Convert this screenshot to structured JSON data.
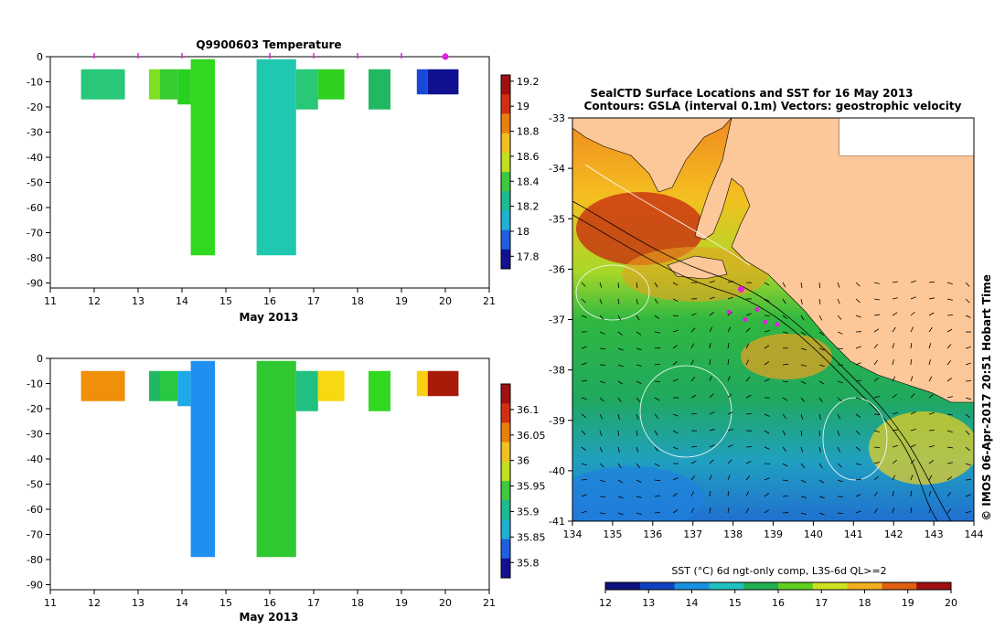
{
  "colors": {
    "land": "#fcc899",
    "ocean_deep": "#1a7a3a",
    "marker": "#e020e0",
    "contour": "#ffffff"
  },
  "panels": {
    "temp": {
      "title": "Q9900603  Temperature",
      "xlabel": "May 2013",
      "xticks": [
        "11",
        "12",
        "13",
        "14",
        "15",
        "16",
        "17",
        "18",
        "19",
        "20",
        "21"
      ],
      "yticks": [
        "0",
        "-10",
        "-20",
        "-30",
        "-40",
        "-50",
        "-60",
        "-70",
        "-80",
        "-90"
      ],
      "cbar_ticks": [
        "19.2",
        "19",
        "18.8",
        "18.6",
        "18.4",
        "18.2",
        "18",
        "17.8"
      ],
      "cbar_colors": [
        "#a01010",
        "#d03010",
        "#e88010",
        "#f0c020",
        "#c0e020",
        "#40c840",
        "#20b890",
        "#20b0d0",
        "#2060e0",
        "#101090"
      ]
    },
    "sal": {
      "title": "",
      "xlabel": "May 2013",
      "xticks": [
        "11",
        "12",
        "13",
        "14",
        "15",
        "16",
        "17",
        "18",
        "19",
        "20",
        "21"
      ],
      "yticks": [
        "0",
        "-10",
        "-20",
        "-30",
        "-40",
        "-50",
        "-60",
        "-70",
        "-80",
        "-90"
      ],
      "cbar_ticks": [
        "36.1",
        "36.05",
        "36",
        "35.95",
        "35.9",
        "35.85",
        "35.8"
      ],
      "cbar_colors": [
        "#a01010",
        "#d03010",
        "#e88010",
        "#f0c020",
        "#c0e020",
        "#40c840",
        "#20b890",
        "#20b0d0",
        "#2060e0",
        "#101090"
      ]
    }
  },
  "map": {
    "title_line1": "SealCTD Surface Locations and SST for 16 May 2013",
    "title_line2": "Contours: GSLA (interval 0.1m) Vectors: geostrophic velocity",
    "xticks": [
      "134",
      "135",
      "136",
      "137",
      "138",
      "139",
      "140",
      "141",
      "142",
      "143",
      "144"
    ],
    "yticks": [
      "-33",
      "-34",
      "-35",
      "-36",
      "-37",
      "-38",
      "-39",
      "-40",
      "-41"
    ],
    "sst_label": "SST (°C) 6d ngt-only comp, L3S-6d QL>=2",
    "sst_ticks": [
      "12",
      "13",
      "14",
      "15",
      "16",
      "17",
      "18",
      "19",
      "20"
    ],
    "sst_colors": [
      "#101080",
      "#1040c0",
      "#1890e0",
      "#20c0c0",
      "#20b050",
      "#60d020",
      "#d0e020",
      "#f0b020",
      "#e06010",
      "#a01010"
    ],
    "credit": "© IMOS 06-Apr-2017 20:51 Hobart Time"
  },
  "chart_data": [
    {
      "type": "heatmap",
      "title": "Q9900603  Temperature",
      "xlabel": "May 2013",
      "ylabel": "",
      "xlim": [
        11,
        21
      ],
      "ylim": [
        -92,
        0
      ],
      "colorbar_range": [
        17.7,
        19.25
      ],
      "profile_dates": [
        12,
        13,
        14,
        16,
        17,
        18,
        19,
        20
      ],
      "cells": [
        {
          "x0": 11.7,
          "x1": 12.7,
          "y0": -5,
          "y1": -17,
          "value": 18.35,
          "color": "#28c878"
        },
        {
          "x0": 13.25,
          "x1": 13.5,
          "y0": -5,
          "y1": -17,
          "value": 18.55,
          "color": "#7ee020"
        },
        {
          "x0": 13.5,
          "x1": 13.9,
          "y0": -5,
          "y1": -17,
          "value": 18.45,
          "color": "#38cc30"
        },
        {
          "x0": 13.9,
          "x1": 14.2,
          "y0": -5,
          "y1": -19,
          "value": 18.5,
          "color": "#28d020"
        },
        {
          "x0": 14.2,
          "x1": 14.75,
          "y0": -1,
          "y1": -79,
          "value": 18.5,
          "color": "#30d820"
        },
        {
          "x0": 15.7,
          "x1": 16.6,
          "y0": -1,
          "y1": -79,
          "value": 18.25,
          "color": "#20c8b0"
        },
        {
          "x0": 16.6,
          "x1": 17.1,
          "y0": -5,
          "y1": -21,
          "value": 18.35,
          "color": "#28c878"
        },
        {
          "x0": 17.1,
          "x1": 17.7,
          "y0": -5,
          "y1": -17,
          "value": 18.5,
          "color": "#30d020"
        },
        {
          "x0": 18.25,
          "x1": 18.75,
          "y0": -5,
          "y1": -21,
          "value": 18.4,
          "color": "#20b860"
        },
        {
          "x0": 19.35,
          "x1": 19.6,
          "y0": -5,
          "y1": -15,
          "value": 17.9,
          "color": "#1848d8"
        },
        {
          "x0": 19.6,
          "x1": 20.3,
          "y0": -5,
          "y1": -15,
          "value": 17.75,
          "color": "#101090"
        }
      ]
    },
    {
      "type": "heatmap",
      "title": "",
      "xlabel": "May 2013",
      "ylabel": "",
      "xlim": [
        11,
        21
      ],
      "ylim": [
        -92,
        0
      ],
      "colorbar_range": [
        35.77,
        36.15
      ],
      "cells": [
        {
          "x0": 11.7,
          "x1": 12.7,
          "y0": -5,
          "y1": -17,
          "value": 36.03,
          "color": "#f0900a"
        },
        {
          "x0": 13.25,
          "x1": 13.5,
          "y0": -5,
          "y1": -17,
          "value": 35.93,
          "color": "#20b860"
        },
        {
          "x0": 13.5,
          "x1": 13.9,
          "y0": -5,
          "y1": -17,
          "value": 35.95,
          "color": "#28c840"
        },
        {
          "x0": 13.9,
          "x1": 14.2,
          "y0": -5,
          "y1": -19,
          "value": 35.86,
          "color": "#20a8e8"
        },
        {
          "x0": 14.2,
          "x1": 14.75,
          "y0": -1,
          "y1": -79,
          "value": 35.85,
          "color": "#2090f0"
        },
        {
          "x0": 15.7,
          "x1": 16.6,
          "y0": -1,
          "y1": -79,
          "value": 35.95,
          "color": "#30c830"
        },
        {
          "x0": 16.6,
          "x1": 17.1,
          "y0": -5,
          "y1": -21,
          "value": 35.92,
          "color": "#20c080"
        },
        {
          "x0": 17.1,
          "x1": 17.7,
          "y0": -5,
          "y1": -17,
          "value": 36.0,
          "color": "#f8d810"
        },
        {
          "x0": 18.25,
          "x1": 18.75,
          "y0": -5,
          "y1": -21,
          "value": 35.95,
          "color": "#30d820"
        },
        {
          "x0": 19.35,
          "x1": 19.6,
          "y0": -5,
          "y1": -15,
          "value": 36.0,
          "color": "#f8d010"
        },
        {
          "x0": 19.6,
          "x1": 20.3,
          "y0": -5,
          "y1": -15,
          "value": 36.13,
          "color": "#a81a08"
        }
      ]
    },
    {
      "type": "heatmap",
      "title": "SealCTD Surface Locations and SST for 16 May 2013",
      "xlabel": "",
      "ylabel": "",
      "xlim": [
        134,
        144
      ],
      "ylim": [
        -41,
        -33
      ],
      "colorbar_range": [
        12,
        20
      ],
      "ctd_locations": [
        {
          "lon": 138.2,
          "lat": -36.4
        },
        {
          "lon": 138.6,
          "lat": -36.8
        },
        {
          "lon": 138.3,
          "lat": -37.0
        },
        {
          "lon": 138.8,
          "lat": -37.05
        },
        {
          "lon": 139.1,
          "lat": -37.1
        },
        {
          "lon": 137.9,
          "lat": -36.85
        }
      ]
    }
  ]
}
